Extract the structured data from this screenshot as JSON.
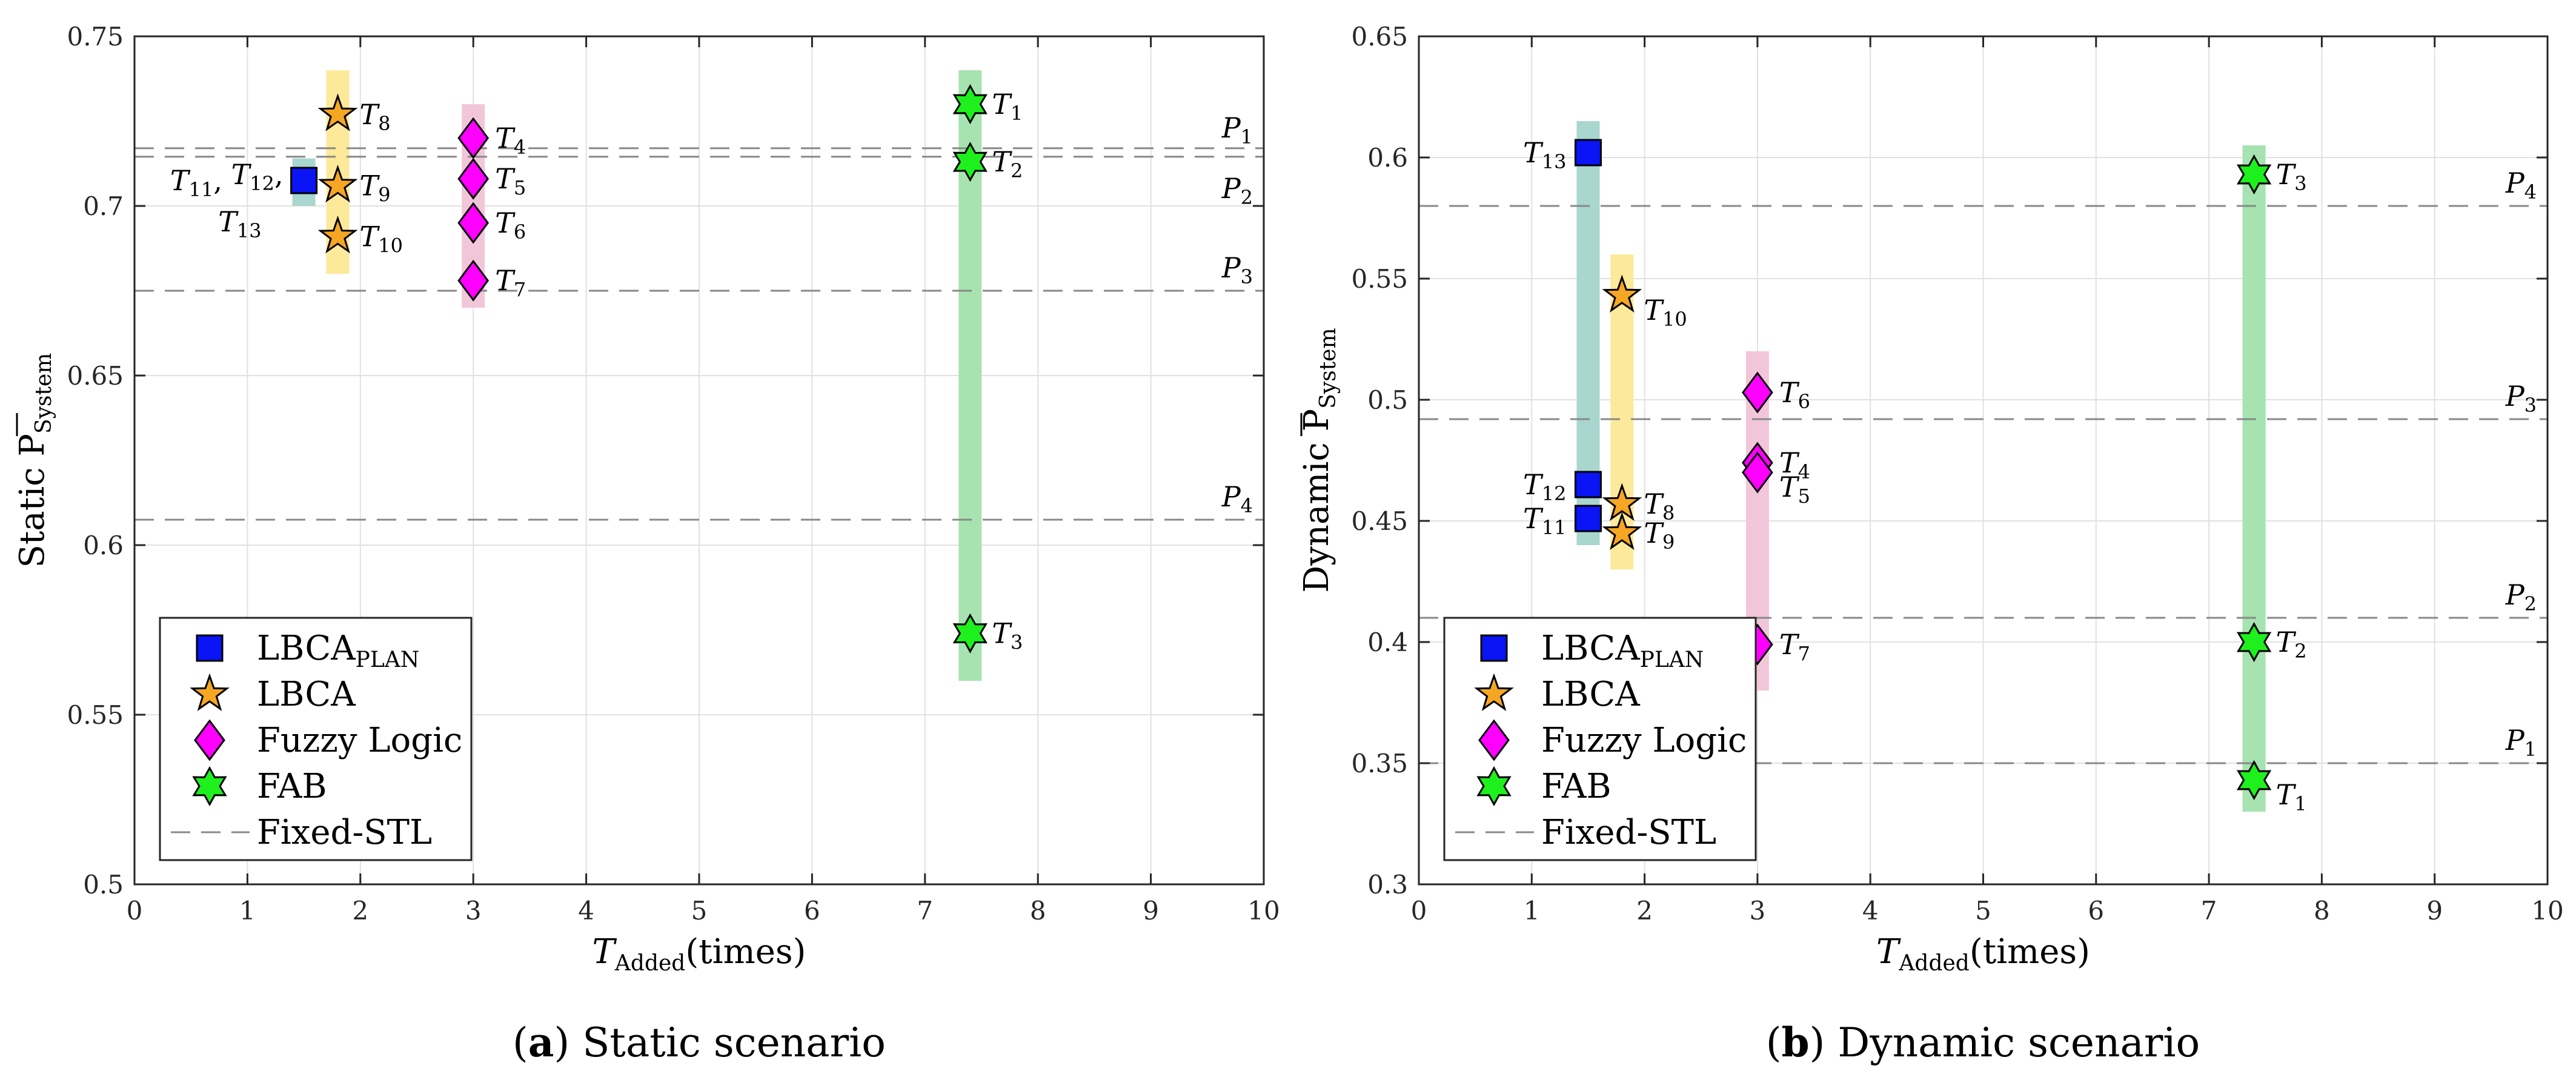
{
  "colors": {
    "lbca_plan": "#0a14f5",
    "lbca": "#f5a623",
    "fuzzy": "#ff00ff",
    "fab": "#1ef01e",
    "band_lbca_plan": "#a9d6cf",
    "band_lbca": "#fde99a",
    "band_fuzzy": "#f2c6d9",
    "band_fab": "#a6e3b0",
    "grid": "#e1e1e1",
    "dashed": "#888888"
  },
  "chart_data": [
    {
      "type": "scatter",
      "id": "static",
      "caption_letter": "a",
      "caption_text": "Static scenario",
      "ylabel_main": "Static P",
      "ylabel_sub": "System",
      "xlabel_main": "T",
      "xlabel_sub": "Added",
      "xlabel_suffix": "(times)",
      "xlim": [
        0,
        10
      ],
      "ylim": [
        0.5,
        0.75
      ],
      "xticks": [
        0,
        1,
        2,
        3,
        4,
        5,
        6,
        7,
        8,
        9,
        10
      ],
      "yticks": [
        0.5,
        0.55,
        0.6,
        0.65,
        0.7,
        0.75
      ],
      "ytick_labels": [
        "0.5",
        "0.55",
        "0.6",
        "0.65",
        "0.7",
        "0.75"
      ],
      "legend_position": "bottom-left",
      "legend": [
        {
          "series": "lbca_plan",
          "main": "LBCA",
          "sub": "PLAN"
        },
        {
          "series": "lbca",
          "main": "LBCA",
          "sub": ""
        },
        {
          "series": "fuzzy",
          "main": "Fuzzy Logic",
          "sub": ""
        },
        {
          "series": "fab",
          "main": "FAB",
          "sub": ""
        },
        {
          "series": "fixed",
          "main": "Fixed-STL",
          "sub": ""
        }
      ],
      "bands": [
        {
          "series": "lbca_plan",
          "x": 1.5,
          "y0": 0.7,
          "y1": 0.714
        },
        {
          "series": "lbca",
          "x": 1.8,
          "y0": 0.68,
          "y1": 0.74
        },
        {
          "series": "fuzzy",
          "x": 3.0,
          "y0": 0.67,
          "y1": 0.73
        },
        {
          "series": "fab",
          "x": 7.4,
          "y0": 0.56,
          "y1": 0.74
        }
      ],
      "fixed_stl": [
        {
          "name": "P",
          "sub": "1",
          "y": 0.717
        },
        {
          "name": "P",
          "sub": "2",
          "y": 0.7145
        },
        {
          "name": "P",
          "sub": "3",
          "y": 0.675
        },
        {
          "name": "P",
          "sub": "4",
          "y": 0.6075
        }
      ],
      "points": [
        {
          "series": "lbca_plan",
          "x": 1.5,
          "y": 0.7075,
          "label": "",
          "sub": ""
        },
        {
          "series": "lbca",
          "x": 1.8,
          "y": 0.727,
          "label": "T",
          "sub": "8"
        },
        {
          "series": "lbca",
          "x": 1.8,
          "y": 0.706,
          "label": "T",
          "sub": "9"
        },
        {
          "series": "lbca",
          "x": 1.8,
          "y": 0.691,
          "label": "T",
          "sub": "10"
        },
        {
          "series": "fuzzy",
          "x": 3.0,
          "y": 0.72,
          "label": "T",
          "sub": "4"
        },
        {
          "series": "fuzzy",
          "x": 3.0,
          "y": 0.708,
          "label": "T",
          "sub": "5"
        },
        {
          "series": "fuzzy",
          "x": 3.0,
          "y": 0.695,
          "label": "T",
          "sub": "6"
        },
        {
          "series": "fuzzy",
          "x": 3.0,
          "y": 0.678,
          "label": "T",
          "sub": "7"
        },
        {
          "series": "fab",
          "x": 7.4,
          "y": 0.73,
          "label": "T",
          "sub": "1"
        },
        {
          "series": "fab",
          "x": 7.4,
          "y": 0.713,
          "label": "T",
          "sub": "2"
        },
        {
          "series": "fab",
          "x": 7.4,
          "y": 0.574,
          "label": "T",
          "sub": "3"
        }
      ],
      "group_labels": [
        {
          "x": 1.5,
          "y": 0.7075,
          "parts": [
            [
              "T",
              "11"
            ],
            [
              "T",
              "12"
            ]
          ],
          "trailing": ",",
          "side": "left"
        },
        {
          "x": 1.5,
          "y": 0.7075,
          "parts": [
            [
              "T",
              "13"
            ]
          ],
          "trailing": "",
          "side": "below-left"
        }
      ]
    },
    {
      "type": "scatter",
      "id": "dynamic",
      "caption_letter": "b",
      "caption_text": "Dynamic scenario",
      "ylabel_main": "Dynamic P",
      "ylabel_sub": "System",
      "xlabel_main": "T",
      "xlabel_sub": "Added",
      "xlabel_suffix": "(times)",
      "xlim": [
        0,
        10
      ],
      "ylim": [
        0.3,
        0.65
      ],
      "xticks": [
        0,
        1,
        2,
        3,
        4,
        5,
        6,
        7,
        8,
        9,
        10
      ],
      "yticks": [
        0.3,
        0.35,
        0.4,
        0.45,
        0.5,
        0.55,
        0.6,
        0.65
      ],
      "ytick_labels": [
        "0.3",
        "0.35",
        "0.4",
        "0.45",
        "0.5",
        "0.55",
        "0.6",
        "0.65"
      ],
      "legend_position": "bottom-left",
      "legend": [
        {
          "series": "lbca_plan",
          "main": "LBCA",
          "sub": "PLAN"
        },
        {
          "series": "lbca",
          "main": "LBCA",
          "sub": ""
        },
        {
          "series": "fuzzy",
          "main": "Fuzzy Logic",
          "sub": ""
        },
        {
          "series": "fab",
          "main": "FAB",
          "sub": ""
        },
        {
          "series": "fixed",
          "main": "Fixed-STL",
          "sub": ""
        }
      ],
      "bands": [
        {
          "series": "lbca_plan",
          "x": 1.5,
          "y0": 0.44,
          "y1": 0.615
        },
        {
          "series": "lbca",
          "x": 1.8,
          "y0": 0.43,
          "y1": 0.56
        },
        {
          "series": "fuzzy",
          "x": 3.0,
          "y0": 0.38,
          "y1": 0.52
        },
        {
          "series": "fab",
          "x": 7.4,
          "y0": 0.33,
          "y1": 0.605
        }
      ],
      "fixed_stl": [
        {
          "name": "P",
          "sub": "4",
          "y": 0.58
        },
        {
          "name": "P",
          "sub": "3",
          "y": 0.492
        },
        {
          "name": "P",
          "sub": "2",
          "y": 0.41
        },
        {
          "name": "P",
          "sub": "1",
          "y": 0.35
        }
      ],
      "points": [
        {
          "series": "lbca_plan",
          "x": 1.5,
          "y": 0.602,
          "label": "T",
          "sub": "13",
          "side": "left"
        },
        {
          "series": "lbca_plan",
          "x": 1.5,
          "y": 0.465,
          "label": "T",
          "sub": "12",
          "side": "left"
        },
        {
          "series": "lbca_plan",
          "x": 1.5,
          "y": 0.451,
          "label": "T",
          "sub": "11",
          "side": "left"
        },
        {
          "series": "lbca",
          "x": 1.8,
          "y": 0.543,
          "label": "T",
          "sub": "10",
          "side": "right-low"
        },
        {
          "series": "lbca",
          "x": 1.8,
          "y": 0.457,
          "label": "T",
          "sub": "8"
        },
        {
          "series": "lbca",
          "x": 1.8,
          "y": 0.445,
          "label": "T",
          "sub": "9"
        },
        {
          "series": "fuzzy",
          "x": 3.0,
          "y": 0.503,
          "label": "T",
          "sub": "6"
        },
        {
          "series": "fuzzy",
          "x": 3.0,
          "y": 0.474,
          "label": "T",
          "sub": "4"
        },
        {
          "series": "fuzzy",
          "x": 3.0,
          "y": 0.47,
          "label": "T",
          "sub": "5",
          "side": "right-low"
        },
        {
          "series": "fuzzy",
          "x": 3.0,
          "y": 0.399,
          "label": "T",
          "sub": "7"
        },
        {
          "series": "fab",
          "x": 7.4,
          "y": 0.593,
          "label": "T",
          "sub": "3"
        },
        {
          "series": "fab",
          "x": 7.4,
          "y": 0.4,
          "label": "T",
          "sub": "2"
        },
        {
          "series": "fab",
          "x": 7.4,
          "y": 0.343,
          "label": "T",
          "sub": "1",
          "side": "right-low"
        }
      ],
      "group_labels": []
    }
  ]
}
